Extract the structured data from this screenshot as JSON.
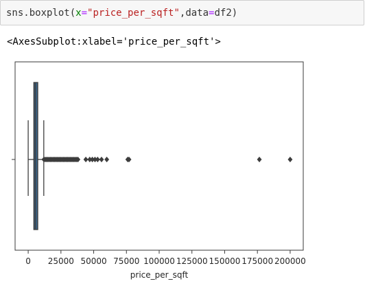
{
  "cell": {
    "code_parts": [
      {
        "text": "sns.boxplot(",
        "kind": "plain"
      },
      {
        "text": "x",
        "kind": "kw"
      },
      {
        "text": "=",
        "kind": "op"
      },
      {
        "text": "\"price_per_sqft\"",
        "kind": "str"
      },
      {
        "text": ",data",
        "kind": "plain"
      },
      {
        "text": "=",
        "kind": "op"
      },
      {
        "text": "df2)",
        "kind": "plain"
      }
    ],
    "output_text": "<AxesSubplot:xlabel='price_per_sqft'>"
  },
  "colors": {
    "box_fill": "#3a5f7e",
    "line": "#3d3d3d",
    "code_keyword": "#008000",
    "code_operator": "#aa22ff",
    "code_string": "#ba2121"
  },
  "chart_data": {
    "type": "box",
    "xlabel": "price_per_sqft",
    "ylabel": "",
    "title": "",
    "xlim": [
      -10000,
      210000
    ],
    "xticks": [
      0,
      25000,
      50000,
      75000,
      100000,
      125000,
      150000,
      175000,
      200000
    ],
    "xtick_labels": [
      "0",
      "25000",
      "50000",
      "75000",
      "100000",
      "125000",
      "150000",
      "175000",
      "200000"
    ],
    "box": {
      "whisker_low": 0,
      "q1": 4300,
      "median": 5400,
      "q3": 7300,
      "whisker_high": 11900
    },
    "outliers": [
      12000,
      13000,
      14000,
      15000,
      16000,
      17000,
      18000,
      19000,
      20000,
      21000,
      22000,
      23000,
      24000,
      25000,
      26000,
      27000,
      28000,
      29000,
      30000,
      31000,
      32000,
      33000,
      34000,
      35000,
      36000,
      37000,
      38000,
      44000,
      47000,
      49000,
      51000,
      53000,
      56000,
      60000,
      76000,
      77000,
      176500,
      200000
    ]
  }
}
